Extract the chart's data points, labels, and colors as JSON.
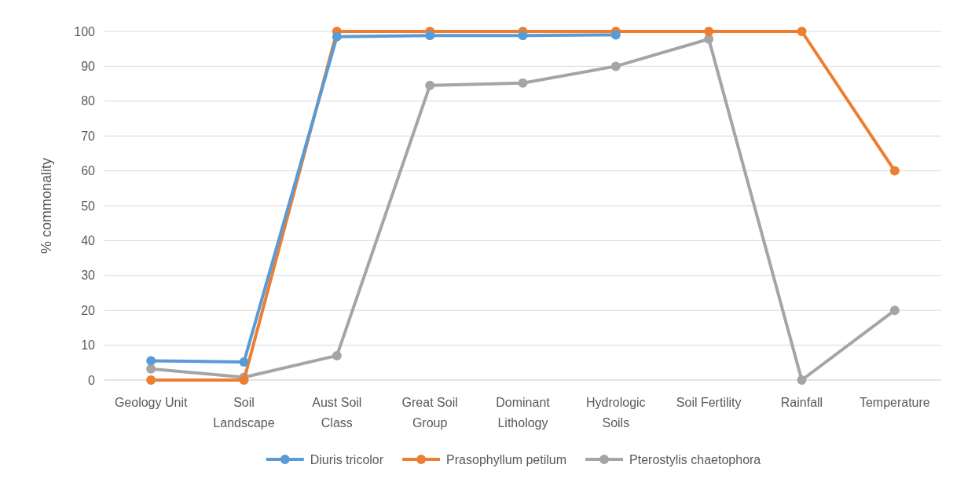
{
  "chart_data": {
    "type": "line",
    "ylabel": "% commonality",
    "categories": [
      "Geology Unit",
      "Soil Landscape",
      "Aust Soil Class",
      "Great Soil Group",
      "Dominant Lithology",
      "Hydrologic Soils",
      "Soil Fertility",
      "Rainfall",
      "Temperature"
    ],
    "series": [
      {
        "name": "Diuris tricolor",
        "color": "#5b9bd5",
        "values": [
          5.5,
          5.2,
          98.5,
          98.8,
          98.8,
          99,
          null,
          null,
          null
        ]
      },
      {
        "name": "Prasophyllum petilum",
        "color": "#ed7d31",
        "values": [
          0,
          0,
          100,
          100,
          100,
          100,
          100,
          100,
          60
        ]
      },
      {
        "name": "Pterostylis chaetophora",
        "color": "#a5a5a5",
        "values": [
          3.2,
          0.8,
          7,
          84.5,
          85.2,
          90,
          97.8,
          0,
          20
        ]
      }
    ],
    "ylim": [
      0,
      100
    ],
    "yticks": [
      0,
      10,
      20,
      30,
      40,
      50,
      60,
      70,
      80,
      90,
      100
    ],
    "grid": "y",
    "legend": "bottom",
    "marker": "circle",
    "line_style": "solid"
  }
}
